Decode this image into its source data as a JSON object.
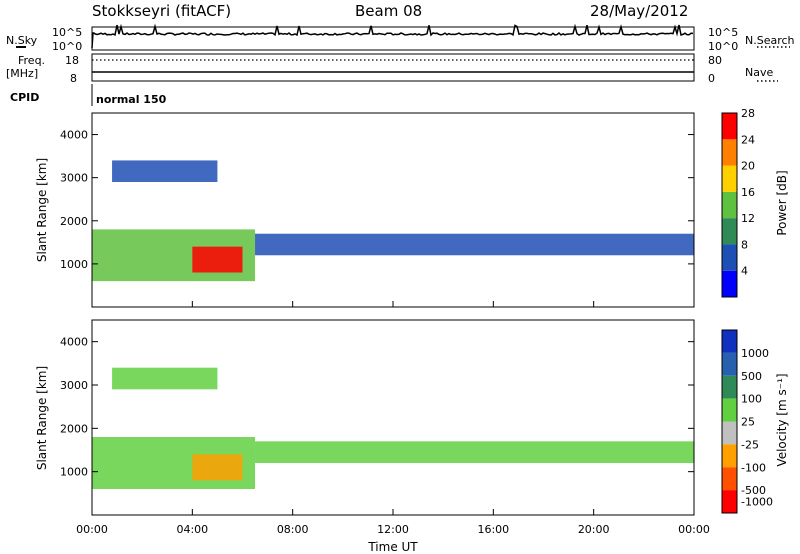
{
  "header": {
    "station": "Stokkseyri (fitACF)",
    "beam": "Beam 08",
    "date": "28/May/2012"
  },
  "strip_labels": {
    "nsky": "N.Sky",
    "nsearch": "N.Search",
    "freq_line1": "Freq.",
    "freq_line2": "[MHz]",
    "nave": "Nave",
    "cpid": "CPID",
    "cpid_value": "normal 150",
    "noise_top": "10^5",
    "noise_bottom": "10^0",
    "freq_top": "18",
    "freq_bottom": "8",
    "nave_top": "80",
    "nave_bottom": "0"
  },
  "axes": {
    "ylabel": "Slant Range [km]",
    "xlabel": "Time UT",
    "y_ticks": [
      "1000",
      "2000",
      "3000",
      "4000"
    ],
    "x_ticks": [
      "00:00",
      "04:00",
      "08:00",
      "12:00",
      "16:00",
      "20:00",
      "00:00"
    ]
  },
  "power_scale": {
    "label": "Power [dB]",
    "ticks": [
      "4",
      "8",
      "12",
      "16",
      "20",
      "24",
      "28"
    ],
    "colors": [
      "#0000ff",
      "#1e4fb4",
      "#2e8b57",
      "#60c040",
      "#ffd000",
      "#ff8000",
      "#ff0000"
    ]
  },
  "velocity_scale": {
    "label": "Velocity [m s⁻¹]",
    "ticks": [
      "1000",
      "500",
      "100",
      "25",
      "-25",
      "-100",
      "-500",
      "-1000"
    ],
    "colors": [
      "#1030c0",
      "#2860b0",
      "#2e8b57",
      "#60d040",
      "#c0c0c0",
      "#ffa000",
      "#ff5000",
      "#ff0000"
    ]
  },
  "chart_data": [
    {
      "type": "heatmap",
      "name": "power",
      "xlabel": "Time UT",
      "ylabel": "Slant Range [km]",
      "xlim_hours": [
        0,
        24
      ],
      "ylim_km": [
        0,
        4500
      ],
      "colorbar_label": "Power [dB]",
      "colorbar_range": [
        0,
        30
      ],
      "regions": [
        {
          "t0": 0.0,
          "t1": 6.5,
          "r0": 600,
          "r1": 1800,
          "level": 16
        },
        {
          "t0": 4.0,
          "t1": 6.0,
          "r0": 800,
          "r1": 1400,
          "level": 26
        },
        {
          "t0": 6.5,
          "t1": 24.0,
          "r0": 1200,
          "r1": 1700,
          "level": 8
        },
        {
          "t0": 0.8,
          "t1": 5.0,
          "r0": 2900,
          "r1": 3400,
          "level": 5
        }
      ]
    },
    {
      "type": "heatmap",
      "name": "velocity",
      "xlabel": "Time UT",
      "ylabel": "Slant Range [km]",
      "xlim_hours": [
        0,
        24
      ],
      "ylim_km": [
        0,
        4500
      ],
      "colorbar_label": "Velocity [m s⁻¹]",
      "colorbar_range": [
        -1000,
        1000
      ],
      "regions": [
        {
          "t0": 0.0,
          "t1": 6.5,
          "r0": 600,
          "r1": 1800,
          "level": 200
        },
        {
          "t0": 4.0,
          "t1": 6.0,
          "r0": 800,
          "r1": 1400,
          "level": -300
        },
        {
          "t0": 6.5,
          "t1": 24.0,
          "r0": 1200,
          "r1": 1700,
          "level": 0
        },
        {
          "t0": 0.8,
          "t1": 5.0,
          "r0": 2900,
          "r1": 3400,
          "level": 0
        }
      ]
    }
  ]
}
